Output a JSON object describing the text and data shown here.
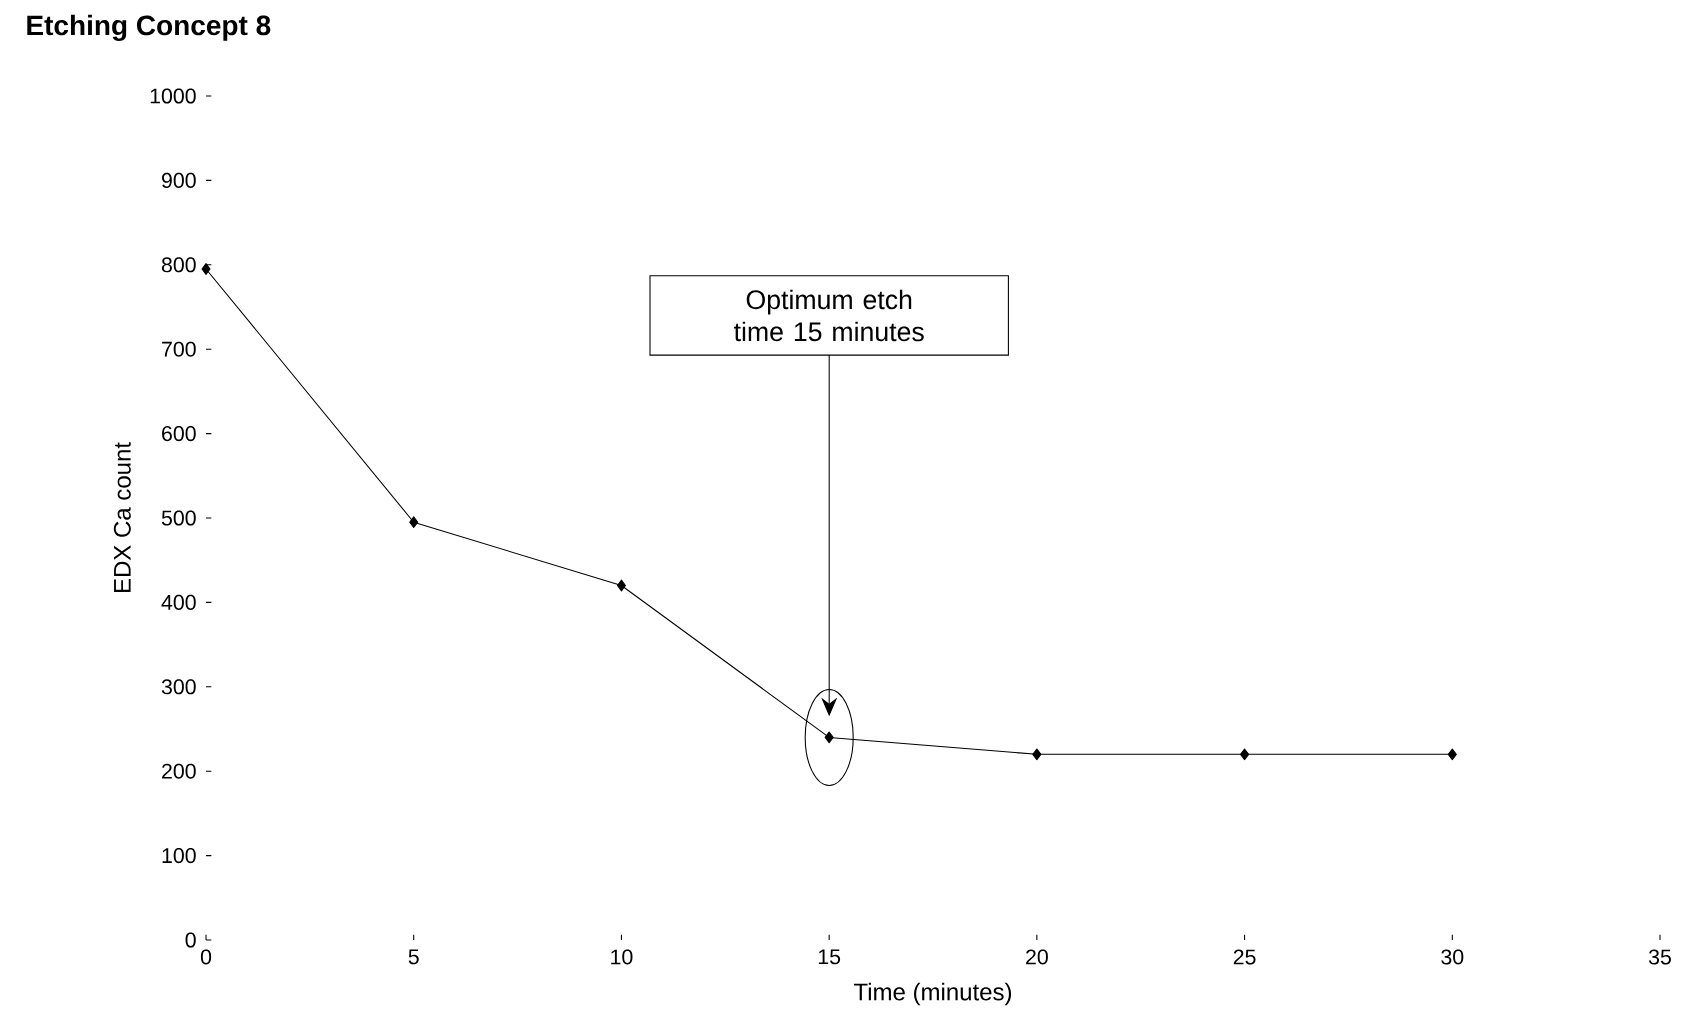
{
  "chart_data": {
    "type": "line",
    "title": "Etching Concept 8",
    "xlabel": "Time (minutes)",
    "ylabel": "EDX Ca count",
    "x": [
      0,
      5,
      10,
      15,
      20,
      25,
      30
    ],
    "values": [
      795,
      495,
      420,
      240,
      220,
      220,
      220
    ],
    "color": "#000000",
    "marker": "diamond",
    "line_style": "solid",
    "grid": false,
    "xlim": [
      0,
      35
    ],
    "xticks": [
      0,
      5,
      10,
      15,
      20,
      25,
      30,
      35
    ],
    "ylim": [
      0,
      1000
    ],
    "yticks": [
      0,
      100,
      200,
      300,
      400,
      500,
      600,
      700,
      800,
      900,
      1000
    ],
    "annotations": [
      "Optimum etch time 15 minutes"
    ]
  }
}
